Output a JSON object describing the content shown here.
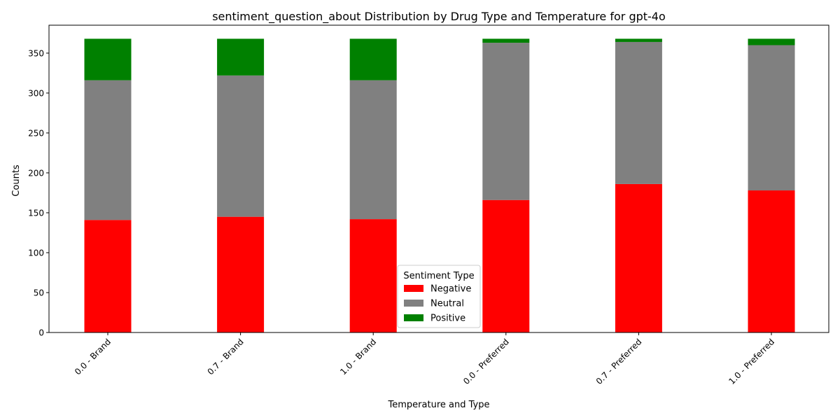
{
  "chart_data": {
    "type": "bar",
    "stacked": true,
    "title": "sentiment_question_about Distribution by Drug Type and Temperature for gpt-4o",
    "xlabel": "Temperature and Type",
    "ylabel": "Counts",
    "ylim": [
      0,
      385
    ],
    "yticks": [
      0,
      50,
      100,
      150,
      200,
      250,
      300,
      350
    ],
    "categories": [
      "0.0 - Brand",
      "0.7 - Brand",
      "1.0 - Brand",
      "0.0 - Preferred",
      "0.7 - Preferred",
      "1.0 - Preferred"
    ],
    "series": [
      {
        "name": "Negative",
        "color": "#ff0000",
        "values": [
          141,
          145,
          142,
          166,
          186,
          178
        ]
      },
      {
        "name": "Neutral",
        "color": "#808080",
        "values": [
          175,
          177,
          174,
          197,
          178,
          182
        ]
      },
      {
        "name": "Positive",
        "color": "#008000",
        "values": [
          52,
          46,
          52,
          5,
          4,
          8
        ]
      }
    ],
    "legend": {
      "title": "Sentiment Type",
      "position": "lower center"
    },
    "grid": false
  }
}
